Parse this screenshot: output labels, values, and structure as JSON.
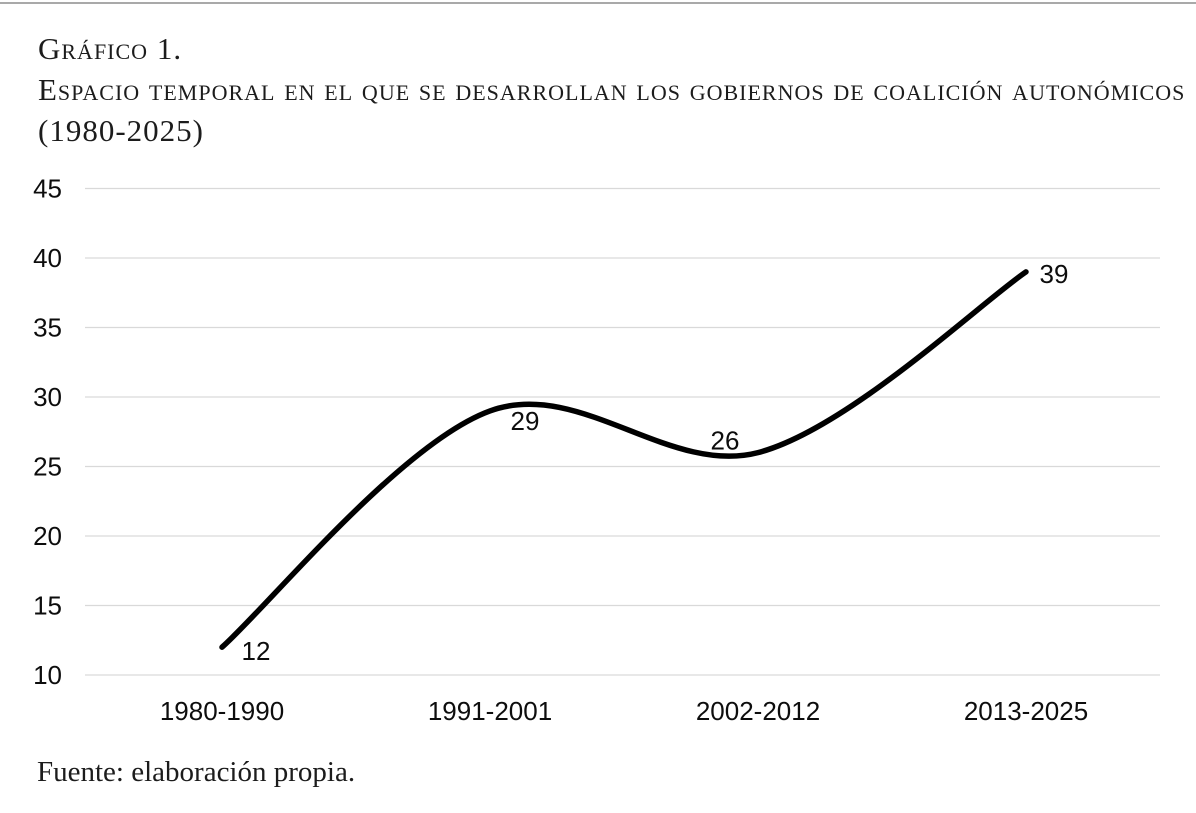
{
  "page": {
    "title_label": "Gráfico 1.",
    "title_line2": "Espacio temporal en el que se desarrollan los gobiernos de coalición autonómicos",
    "title_line3": "(1980-2025)",
    "source": "Fuente: elaboración propia."
  },
  "colors": {
    "text": "#1c1c1c",
    "axis_text": "#0d0d0d",
    "grid": "#d9d9d9",
    "line": "#000000",
    "top_rule": "#a9a9a9"
  },
  "chart_data": {
    "type": "line",
    "title": "Gráfico 1. Espacio temporal en el que se desarrollan los gobiernos de coalición autonómicos (1980-2025)",
    "categories": [
      "1980-1990",
      "1991-2001",
      "2002-2012",
      "2013-2025"
    ],
    "values": [
      12,
      29,
      26,
      39
    ],
    "data_labels": [
      "12",
      "29",
      "26",
      "39"
    ],
    "xlabel": "",
    "ylabel": "",
    "ylim": [
      10,
      45
    ],
    "yticks": [
      45,
      40,
      35,
      30,
      25,
      20,
      15,
      10
    ],
    "grid": true,
    "legend": "none",
    "smooth": true,
    "line_color": "#000000",
    "grid_color": "#d9d9d9",
    "source": "Fuente: elaboración propia."
  }
}
